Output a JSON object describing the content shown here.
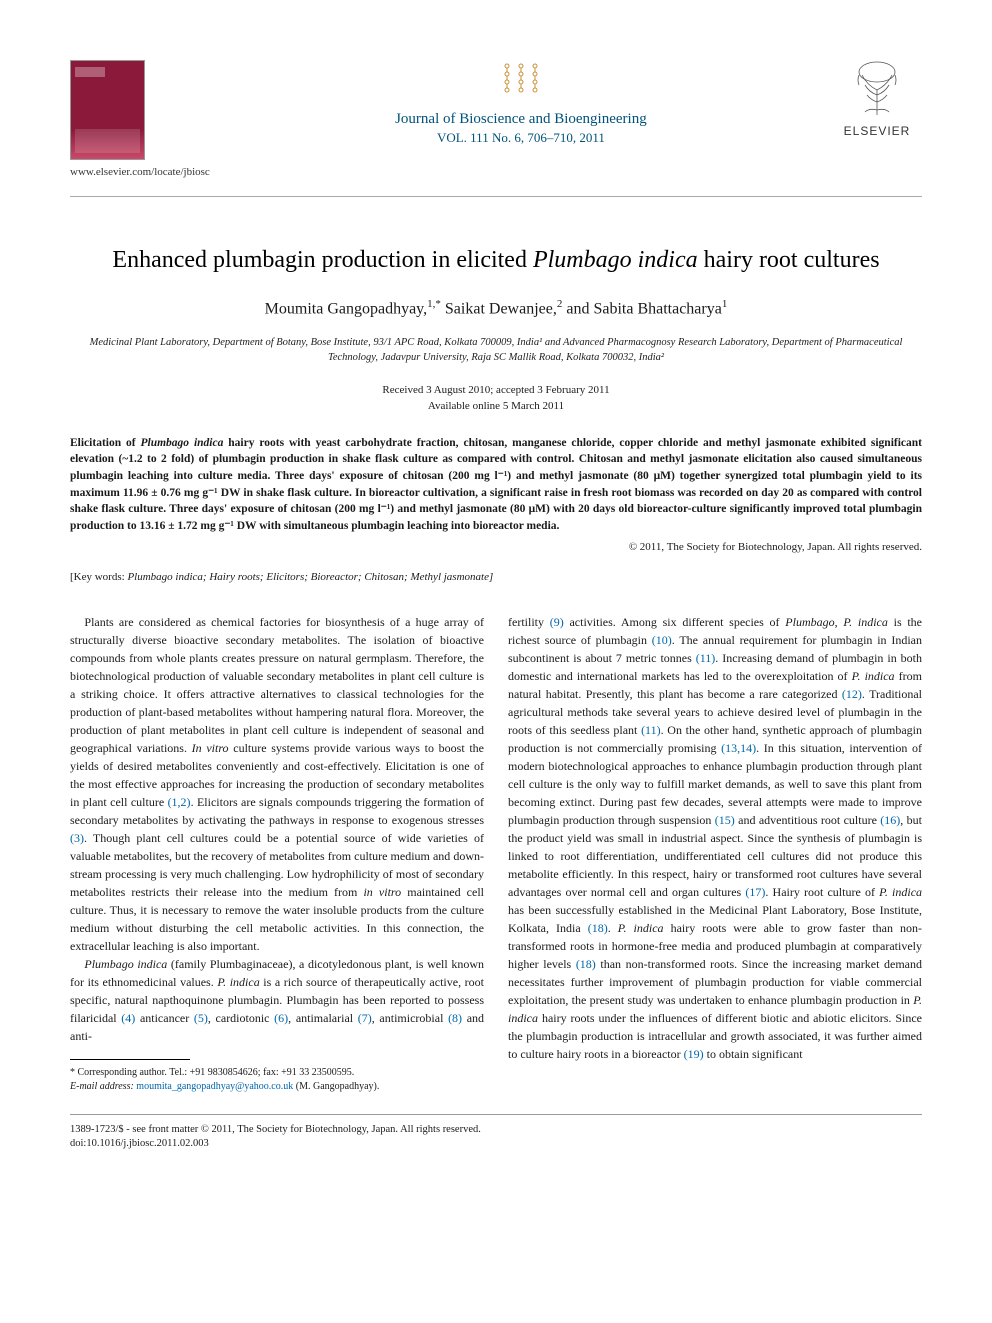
{
  "header": {
    "locate_url": "www.elsevier.com/locate/jbiosc",
    "journal_name": "Journal of Bioscience and Bioengineering",
    "journal_vol": "VOL. 111 No. 6, 706–710, 2011",
    "elsevier_label": "ELSEVIER"
  },
  "title": {
    "pre": "Enhanced plumbagin production in elicited ",
    "italic": "Plumbago indica",
    "post": " hairy root cultures"
  },
  "authors": {
    "a1_name": "Moumita Gangopadhyay,",
    "a1_sup": "1,*",
    "a2_name": " Saikat Dewanjee,",
    "a2_sup": "2",
    "a3_name": " and Sabita Bhattacharya",
    "a3_sup": "1"
  },
  "affiliations": "Medicinal Plant Laboratory, Department of Botany, Bose Institute, 93/1 APC Road, Kolkata 700009, India¹ and Advanced Pharmacognosy Research Laboratory, Department of Pharmaceutical Technology, Jadavpur University, Raja SC Mallik Road, Kolkata 700032, India²",
  "dates": {
    "received": "Received 3 August 2010; accepted 3 February 2011",
    "online": "Available online 5 March 2011"
  },
  "abstract": "Elicitation of Plumbago indica hairy roots with yeast carbohydrate fraction, chitosan, manganese chloride, copper chloride and methyl jasmonate exhibited significant elevation (~1.2 to 2 fold) of plumbagin production in shake flask culture as compared with control. Chitosan and methyl jasmonate elicitation also caused simultaneous plumbagin leaching into culture media. Three days' exposure of chitosan (200 mg l⁻¹) and methyl jasmonate (80 μM) together synergized total plumbagin yield to its maximum 11.96 ± 0.76 mg g⁻¹ DW in shake flask culture. In bioreactor cultivation, a significant raise in fresh root biomass was recorded on day 20 as compared with control shake flask culture. Three days' exposure of chitosan (200 mg l⁻¹) and methyl jasmonate (80 μM) with 20 days old bioreactor-culture significantly improved total plumbagin production to 13.16 ± 1.72 mg g⁻¹ DW with simultaneous plumbagin leaching into bioreactor media.",
  "copyright": "© 2011, The Society for Biotechnology, Japan. All rights reserved.",
  "keywords": {
    "label": "[Key words: ",
    "value": "Plumbago indica; Hairy roots; Elicitors; Bioreactor; Chitosan; Methyl jasmonate]"
  },
  "body": {
    "p1": "Plants are considered as chemical factories for biosynthesis of a huge array of structurally diverse bioactive secondary metabolites. The isolation of bioactive compounds from whole plants creates pressure on natural germplasm. Therefore, the biotechnological production of valuable secondary metabolites in plant cell culture is a striking choice. It offers attractive alternatives to classical technologies for the production of plant-based metabolites without hampering natural flora. Moreover, the production of plant metabolites in plant cell culture is independent of seasonal and geographical variations. In vitro culture systems provide various ways to boost the yields of desired metabolites conveniently and cost-effectively. Elicitation is one of the most effective approaches for increasing the production of secondary metabolites in plant cell culture (1,2). Elicitors are signals compounds triggering the formation of secondary metabolites by activating the pathways in response to exogenous stresses (3). Though plant cell cultures could be a potential source of wide varieties of valuable metabolites, but the recovery of metabolites from culture medium and down-stream processing is very much challenging. Low hydrophilicity of most of secondary metabolites restricts their release into the medium from in vitro maintained cell culture. Thus, it is necessary to remove the water insoluble products from the culture medium without disturbing the cell metabolic activities. In this connection, the extracellular leaching is also important.",
    "p2": "Plumbago indica (family Plumbaginaceae), a dicotyledonous plant, is well known for its ethnomedicinal values. P. indica is a rich source of therapeutically active, root specific, natural napthoquinone plumbagin. Plumbagin has been reported to possess filaricidal (4) anticancer (5), cardiotonic (6), antimalarial (7), antimicrobial (8) and anti-",
    "p3": "fertility (9) activities. Among six different species of Plumbago, P. indica is the richest source of plumbagin (10). The annual requirement for plumbagin in Indian subcontinent is about 7 metric tonnes (11). Increasing demand of plumbagin in both domestic and international markets has led to the overexploitation of P. indica from natural habitat. Presently, this plant has become a rare categorized (12). Traditional agricultural methods take several years to achieve desired level of plumbagin in the roots of this seedless plant (11). On the other hand, synthetic approach of plumbagin production is not commercially promising (13,14). In this situation, intervention of modern biotechnological approaches to enhance plumbagin production through plant cell culture is the only way to fulfill market demands, as well to save this plant from becoming extinct. During past few decades, several attempts were made to improve plumbagin production through suspension (15) and adventitious root culture (16), but the product yield was small in industrial aspect. Since the synthesis of plumbagin is linked to root differentiation, undifferentiated cell cultures did not produce this metabolite efficiently. In this respect, hairy or transformed root cultures have several advantages over normal cell and organ cultures (17). Hairy root culture of P. indica has been successfully established in the Medicinal Plant Laboratory, Bose Institute, Kolkata, India (18). P. indica hairy roots were able to grow faster than non-transformed roots in hormone-free media and produced plumbagin at comparatively higher levels (18) than non-transformed roots. Since the increasing market demand necessitates further improvement of plumbagin production for viable commercial exploitation, the present study was undertaken to enhance plumbagin production in P. indica hairy roots under the influences of different biotic and abiotic elicitors. Since the plumbagin production is intracellular and growth associated, it was further aimed to culture hairy roots in a bioreactor (19) to obtain significant"
  },
  "footnote": {
    "corr": "* Corresponding author. Tel.: +91 9830854626; fax: +91 33 23500595.",
    "email_label": "E-mail address: ",
    "email": "moumita_gangopadhyay@yahoo.co.uk",
    "email_post": " (M. Gangopadhyay)."
  },
  "bottom": {
    "line1": "1389-1723/$ - see front matter © 2011, The Society for Biotechnology, Japan. All rights reserved.",
    "line2": "doi:10.1016/j.jbiosc.2011.02.003"
  },
  "colors": {
    "journal_blue": "#00527a",
    "ref_blue": "#0066aa",
    "cover_maroon": "#8b1a3a"
  }
}
